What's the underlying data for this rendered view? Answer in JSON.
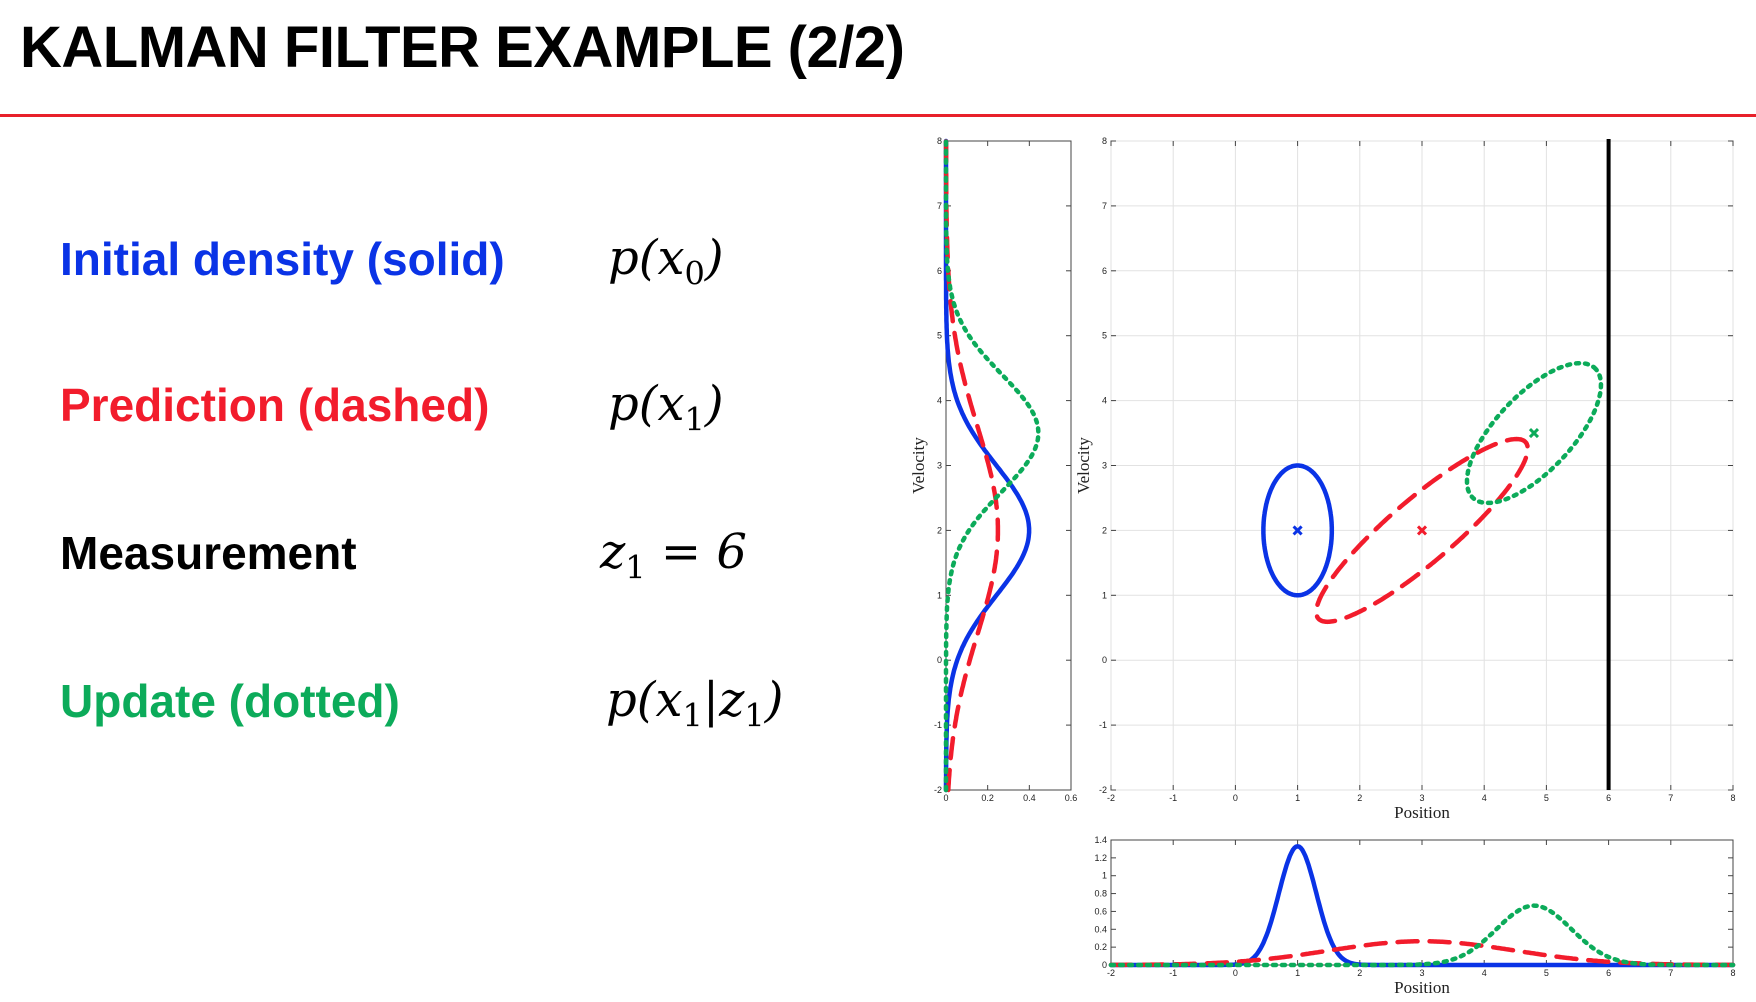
{
  "title": "KALMAN FILTER EXAMPLE (2/2)",
  "legend": [
    {
      "label": "Initial density (solid)",
      "color": "#0a33e6",
      "math_base": "p(x",
      "math_sub": "0",
      "math_close": ")"
    },
    {
      "label": "Prediction (dashed)",
      "color": "#f21c2c",
      "math_base": "p(x",
      "math_sub": "1",
      "math_close": ")"
    },
    {
      "label": "Measurement",
      "color": "#000000",
      "math_base": "z",
      "math_sub": "1",
      "math_close": " = 6"
    },
    {
      "label": "Update (dotted)",
      "color": "#0cab5a",
      "math_base": "p(x",
      "math_sub": "1",
      "math_close": "|z",
      "math_sub2": "1",
      "math_close2": ")"
    }
  ],
  "colors": {
    "initial": "#0a33e6",
    "prediction": "#f21c2c",
    "update": "#0cab5a",
    "measurement": "#000000",
    "title_rule": "#e8202a"
  },
  "chart_data": [
    {
      "type": "line",
      "id": "velocity-marginal",
      "xlabel": "",
      "ylabel": "Velocity",
      "xlim": [
        0,
        0.6
      ],
      "ylim": [
        -2,
        8
      ],
      "xticks": [
        "0",
        "0.2",
        "0.4",
        "0.6"
      ],
      "yticks": [
        "-2",
        "-1",
        "0",
        "1",
        "2",
        "3",
        "4",
        "5",
        "6",
        "7",
        "8"
      ],
      "orientation": "density along x, velocity along y",
      "series": [
        {
          "style": "solid",
          "color": "#0a33e6",
          "mean": 2,
          "std": 1
        },
        {
          "style": "dashed",
          "color": "#f21c2c",
          "mean": 2,
          "std": 1.6
        },
        {
          "style": "dotted",
          "color": "#0cab5a",
          "mean": 3.5,
          "std": 0.9
        }
      ]
    },
    {
      "type": "scatter",
      "id": "position-velocity",
      "xlabel": "Position",
      "ylabel": "Velocity",
      "xlim": [
        -2,
        8
      ],
      "ylim": [
        -2,
        8
      ],
      "xticks": [
        "-2",
        "-1",
        "0",
        "1",
        "2",
        "3",
        "4",
        "5",
        "6",
        "7",
        "8"
      ],
      "yticks": [
        "-2",
        "-1",
        "0",
        "1",
        "2",
        "3",
        "4",
        "5",
        "6",
        "7",
        "8"
      ],
      "grid": true,
      "measurement_x": 6,
      "ellipses": [
        {
          "style": "solid",
          "color": "#0a33e6",
          "center": [
            1,
            2
          ],
          "radii": [
            1.1,
            2
          ],
          "angle_deg": 0
        },
        {
          "style": "dashed",
          "color": "#f21c2c",
          "center": [
            3,
            2
          ],
          "radii": [
            4.3,
            1.0
          ],
          "angle_deg": 39
        },
        {
          "style": "dotted",
          "color": "#0cab5a",
          "center": [
            4.8,
            3.5
          ],
          "radii": [
            2.8,
            1.2
          ],
          "angle_deg": 45
        }
      ],
      "means": [
        {
          "color": "#0a33e6",
          "x": 1,
          "y": 2
        },
        {
          "color": "#f21c2c",
          "x": 3,
          "y": 2
        },
        {
          "color": "#0cab5a",
          "x": 4.8,
          "y": 3.5
        }
      ]
    },
    {
      "type": "line",
      "id": "position-marginal",
      "xlabel": "Position",
      "ylabel": "",
      "xlim": [
        -2,
        8
      ],
      "ylim": [
        0,
        1.4
      ],
      "xticks": [
        "-2",
        "-1",
        "0",
        "1",
        "2",
        "3",
        "4",
        "5",
        "6",
        "7",
        "8"
      ],
      "yticks": [
        "0",
        "0.2",
        "0.4",
        "0.6",
        "0.8",
        "1",
        "1.2",
        "1.4"
      ],
      "series": [
        {
          "style": "solid",
          "color": "#0a33e6",
          "mean": 1,
          "std": 0.3
        },
        {
          "style": "dashed",
          "color": "#f21c2c",
          "mean": 3,
          "std": 1.5
        },
        {
          "style": "dotted",
          "color": "#0cab5a",
          "mean": 4.8,
          "std": 0.6
        }
      ]
    }
  ]
}
